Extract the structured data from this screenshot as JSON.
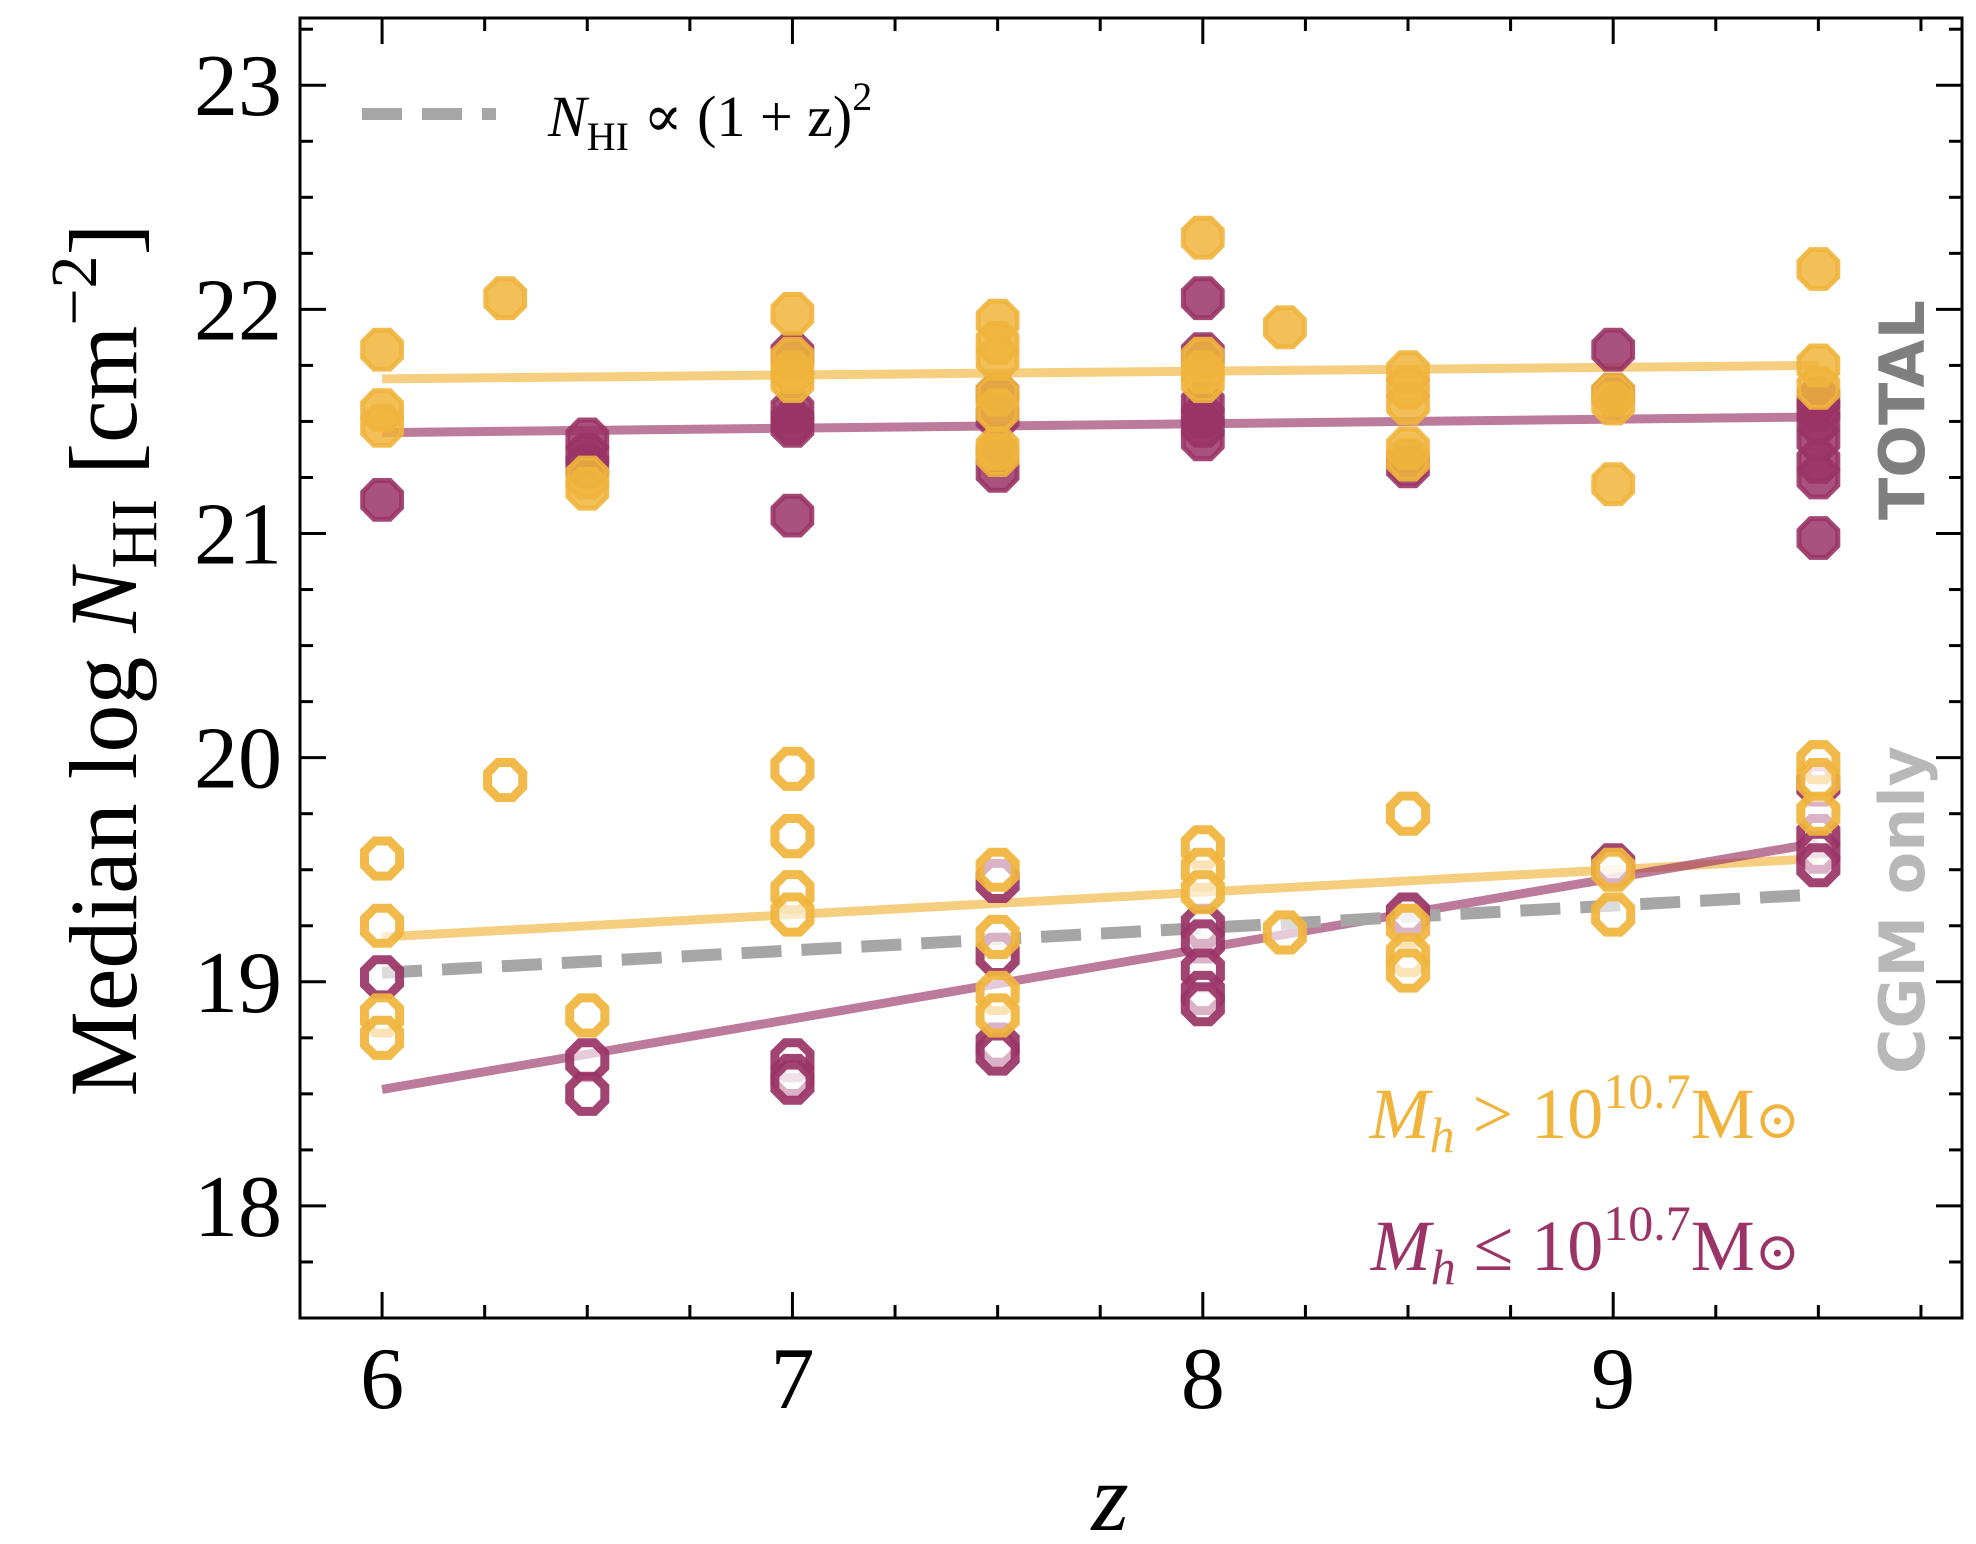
{
  "chart_data": {
    "type": "scatter",
    "xlabel": "z",
    "ylabel_main": "Median log ",
    "ylabel_var": "N",
    "ylabel_sub": "HI",
    "ylabel_unit_open": " [cm",
    "ylabel_unit_exp": "−2",
    "ylabel_unit_close": "]",
    "xlim": [
      5.8,
      9.85
    ],
    "ylim": [
      17.5,
      23.3
    ],
    "xticks": [
      6,
      7,
      8,
      9
    ],
    "yticks": [
      18,
      19,
      20,
      21,
      22,
      23
    ],
    "x_minor_step": 0.25,
    "y_minor_step": 0.25,
    "panel_labels": {
      "total": "TOTAL",
      "cgm": "CGM only"
    },
    "reference_line": {
      "label_var": "N",
      "label_sub": "HI",
      "label_rest": " ∝ (1 + z)",
      "label_exp": "2",
      "x": [
        6.0,
        9.5
      ],
      "y": [
        19.04,
        19.39
      ],
      "color": "#a6a6a6"
    },
    "groups": [
      {
        "name": "high-mass",
        "legend_prefix": "M",
        "legend_sub": "h",
        "legend_op": " > 10",
        "legend_exp": "10.7",
        "legend_unit": "M",
        "legend_sun": "⊙",
        "color": "#f0b43c",
        "total": [
          [
            6.0,
            21.82
          ],
          [
            6.0,
            21.55
          ],
          [
            6.0,
            21.48
          ],
          [
            6.3,
            22.05
          ],
          [
            6.5,
            21.25
          ],
          [
            6.5,
            21.2
          ],
          [
            7.0,
            21.98
          ],
          [
            7.0,
            21.78
          ],
          [
            7.0,
            21.72
          ],
          [
            7.0,
            21.68
          ],
          [
            7.5,
            21.95
          ],
          [
            7.5,
            21.85
          ],
          [
            7.5,
            21.78
          ],
          [
            7.5,
            21.62
          ],
          [
            7.5,
            21.55
          ],
          [
            7.5,
            21.38
          ],
          [
            7.5,
            21.35
          ],
          [
            8.0,
            22.32
          ],
          [
            8.0,
            21.78
          ],
          [
            8.0,
            21.72
          ],
          [
            8.0,
            21.68
          ],
          [
            8.2,
            21.92
          ],
          [
            8.5,
            21.72
          ],
          [
            8.5,
            21.65
          ],
          [
            8.5,
            21.58
          ],
          [
            8.5,
            21.38
          ],
          [
            8.5,
            21.33
          ],
          [
            9.0,
            21.62
          ],
          [
            9.0,
            21.58
          ],
          [
            9.0,
            21.22
          ],
          [
            9.5,
            22.18
          ],
          [
            9.5,
            21.75
          ],
          [
            9.5,
            21.65
          ]
        ],
        "cgm": [
          [
            6.0,
            19.55
          ],
          [
            6.0,
            19.25
          ],
          [
            6.0,
            18.85
          ],
          [
            6.0,
            18.75
          ],
          [
            6.3,
            19.9
          ],
          [
            6.5,
            18.85
          ],
          [
            7.0,
            19.95
          ],
          [
            7.0,
            19.65
          ],
          [
            7.0,
            19.4
          ],
          [
            7.0,
            19.3
          ],
          [
            7.5,
            19.5
          ],
          [
            7.5,
            19.2
          ],
          [
            7.5,
            18.95
          ],
          [
            7.5,
            18.85
          ],
          [
            8.0,
            19.6
          ],
          [
            8.0,
            19.5
          ],
          [
            8.0,
            19.4
          ],
          [
            8.2,
            19.22
          ],
          [
            8.5,
            19.75
          ],
          [
            8.5,
            19.25
          ],
          [
            8.5,
            19.12
          ],
          [
            8.5,
            19.05
          ],
          [
            9.0,
            19.5
          ],
          [
            9.0,
            19.3
          ],
          [
            9.5,
            19.98
          ],
          [
            9.5,
            19.9
          ],
          [
            9.5,
            19.75
          ]
        ],
        "fit_total": {
          "x": [
            6.0,
            9.5
          ],
          "y": [
            21.69,
            21.75
          ]
        },
        "fit_cgm": {
          "x": [
            6.0,
            9.5
          ],
          "y": [
            19.2,
            19.55
          ]
        }
      },
      {
        "name": "low-mass",
        "legend_prefix": "M",
        "legend_sub": "h",
        "legend_op": " ≤ 10",
        "legend_exp": "10.7",
        "legend_unit": "M",
        "legend_sun": "⊙",
        "color": "#9a3466",
        "total": [
          [
            6.0,
            21.15
          ],
          [
            6.5,
            21.42
          ],
          [
            6.5,
            21.35
          ],
          [
            6.5,
            21.3
          ],
          [
            7.0,
            21.8
          ],
          [
            7.0,
            21.55
          ],
          [
            7.0,
            21.5
          ],
          [
            7.0,
            21.48
          ],
          [
            7.0,
            21.08
          ],
          [
            7.5,
            21.62
          ],
          [
            7.5,
            21.52
          ],
          [
            7.5,
            21.35
          ],
          [
            7.5,
            21.28
          ],
          [
            8.0,
            22.05
          ],
          [
            8.0,
            21.8
          ],
          [
            8.0,
            21.58
          ],
          [
            8.0,
            21.52
          ],
          [
            8.0,
            21.48
          ],
          [
            8.0,
            21.42
          ],
          [
            8.5,
            21.3
          ],
          [
            9.0,
            21.82
          ],
          [
            9.0,
            21.62
          ],
          [
            9.5,
            21.6
          ],
          [
            9.5,
            21.55
          ],
          [
            9.5,
            21.5
          ],
          [
            9.5,
            21.42
          ],
          [
            9.5,
            21.32
          ],
          [
            9.5,
            21.25
          ],
          [
            9.5,
            20.98
          ]
        ],
        "cgm": [
          [
            6.0,
            19.02
          ],
          [
            6.5,
            18.65
          ],
          [
            6.5,
            18.5
          ],
          [
            7.0,
            18.65
          ],
          [
            7.0,
            18.58
          ],
          [
            7.0,
            18.55
          ],
          [
            7.5,
            19.45
          ],
          [
            7.5,
            19.12
          ],
          [
            7.5,
            18.72
          ],
          [
            7.5,
            18.68
          ],
          [
            8.0,
            19.25
          ],
          [
            8.0,
            19.18
          ],
          [
            8.0,
            19.05
          ],
          [
            8.0,
            18.95
          ],
          [
            8.0,
            18.9
          ],
          [
            8.5,
            19.3
          ],
          [
            9.0,
            19.52
          ],
          [
            9.5,
            19.88
          ],
          [
            9.5,
            19.65
          ],
          [
            9.5,
            19.58
          ],
          [
            9.5,
            19.52
          ]
        ],
        "fit_total": {
          "x": [
            6.0,
            9.5
          ],
          "y": [
            21.45,
            21.52
          ]
        },
        "fit_cgm": {
          "x": [
            6.0,
            9.5
          ],
          "y": [
            18.52,
            19.62
          ]
        }
      }
    ]
  }
}
